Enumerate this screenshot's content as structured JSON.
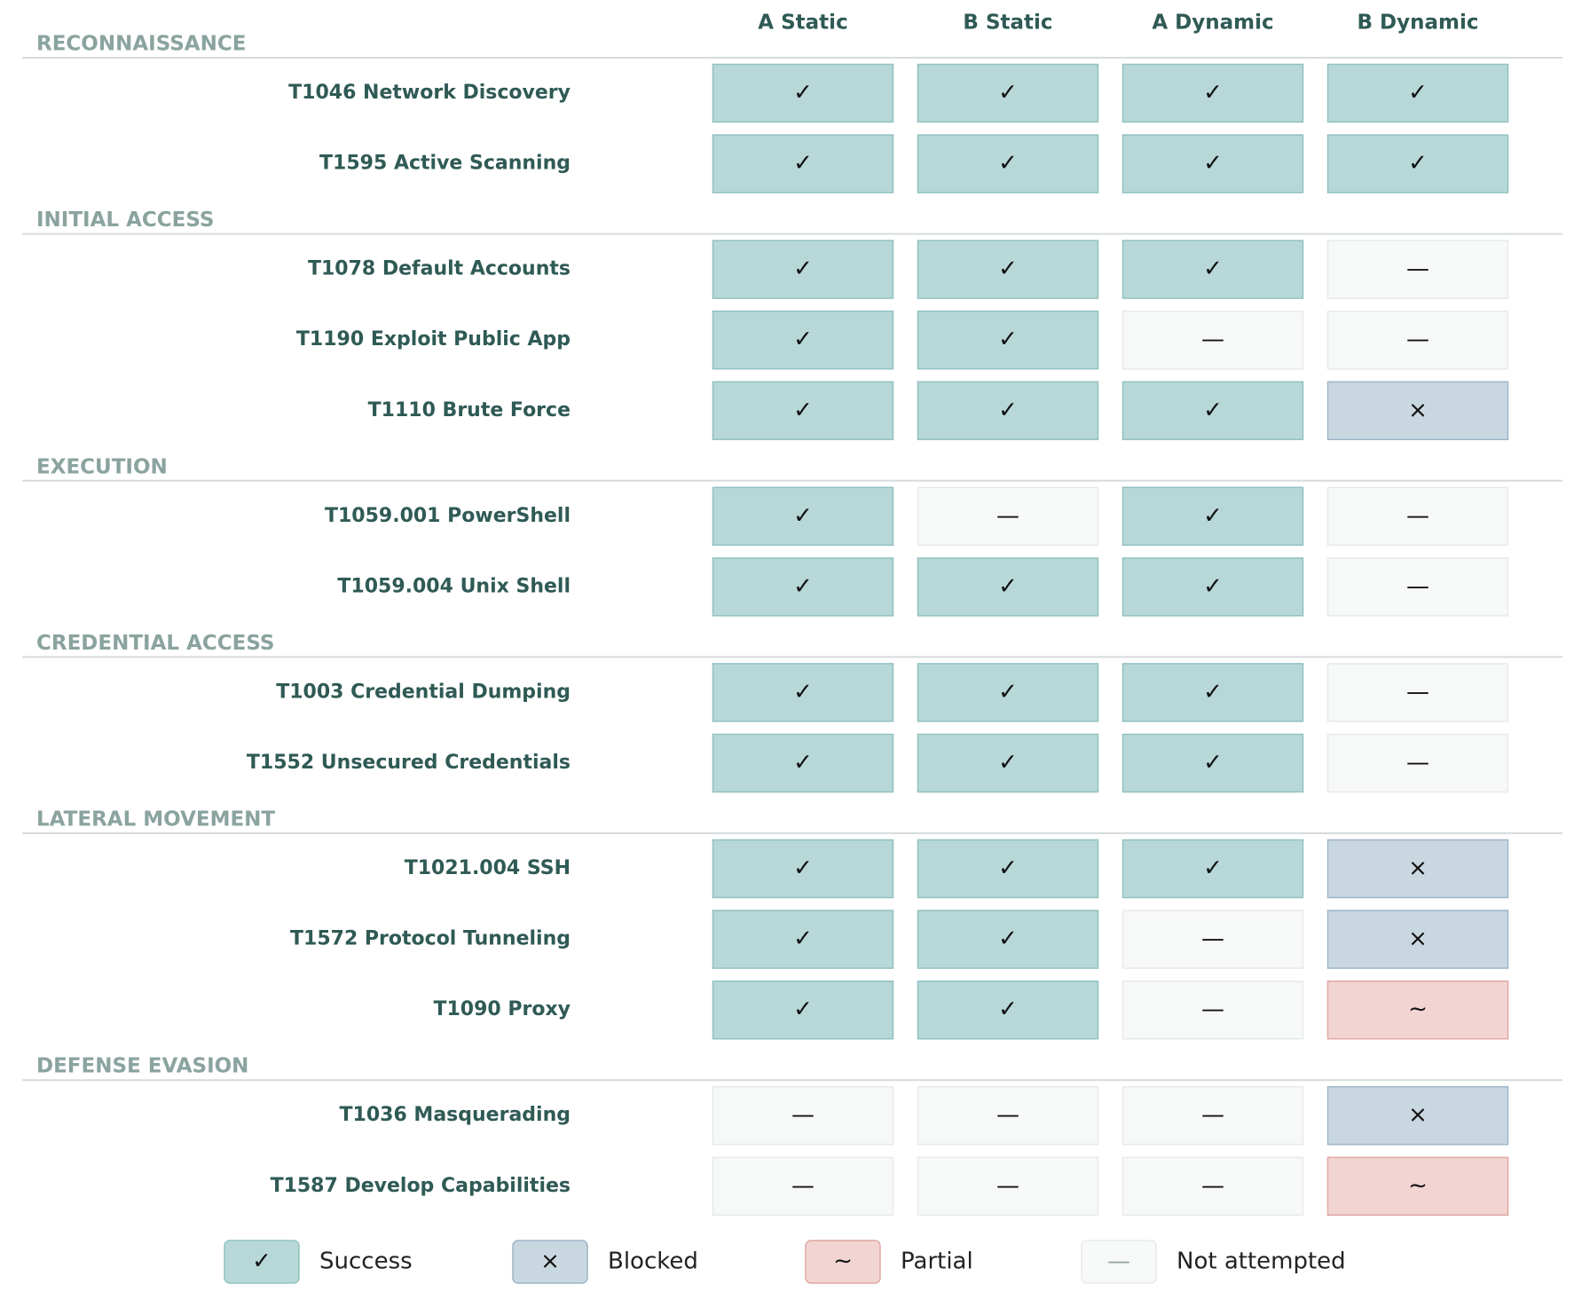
{
  "columns": [
    "A Static",
    "B Static",
    "A Dynamic",
    "B Dynamic"
  ],
  "sections": [
    {
      "title": "RECONNAISSANCE",
      "rows": [
        {
          "label": "T1046 Network Discovery",
          "cells": [
            "✓",
            "✓",
            "✓",
            "✓"
          ]
        },
        {
          "label": "T1595 Active Scanning",
          "cells": [
            "✓",
            "✓",
            "✓",
            "✓"
          ]
        }
      ]
    },
    {
      "title": "INITIAL ACCESS",
      "rows": [
        {
          "label": "T1078 Default Accounts",
          "cells": [
            "✓",
            "✓",
            "✓",
            "—"
          ]
        },
        {
          "label": "T1190 Exploit Public App",
          "cells": [
            "✓",
            "✓",
            "—",
            "—"
          ]
        },
        {
          "label": "T1110 Brute Force",
          "cells": [
            "✓",
            "✓",
            "✓",
            "×"
          ]
        }
      ]
    },
    {
      "title": "EXECUTION",
      "rows": [
        {
          "label": "T1059.001 PowerShell",
          "cells": [
            "✓",
            "—",
            "✓",
            "—"
          ]
        },
        {
          "label": "T1059.004 Unix Shell",
          "cells": [
            "✓",
            "✓",
            "✓",
            "—"
          ]
        }
      ]
    },
    {
      "title": "CREDENTIAL ACCESS",
      "rows": [
        {
          "label": "T1003 Credential Dumping",
          "cells": [
            "✓",
            "✓",
            "✓",
            "—"
          ]
        },
        {
          "label": "T1552 Unsecured Credentials",
          "cells": [
            "✓",
            "✓",
            "✓",
            "—"
          ]
        }
      ]
    },
    {
      "title": "LATERAL MOVEMENT",
      "rows": [
        {
          "label": "T1021.004 SSH",
          "cells": [
            "✓",
            "✓",
            "✓",
            "×"
          ]
        },
        {
          "label": "T1572 Protocol Tunneling",
          "cells": [
            "✓",
            "✓",
            "—",
            "×"
          ]
        },
        {
          "label": "T1090 Proxy",
          "cells": [
            "✓",
            "✓",
            "—",
            "∼"
          ]
        }
      ]
    },
    {
      "title": "DEFENSE EVASION",
      "rows": [
        {
          "label": "T1036 Masquerading",
          "cells": [
            "—",
            "—",
            "—",
            "×"
          ]
        },
        {
          "label": "T1587 Develop Capabilities",
          "cells": [
            "—",
            "—",
            "—",
            "∼"
          ]
        }
      ]
    }
  ],
  "legend": [
    {
      "symbol": "✓",
      "label": "Success",
      "fill": "#b8d8d8",
      "stroke": "#93c1c1",
      "symbol_color": "#111111"
    },
    {
      "symbol": "×",
      "label": "Blocked",
      "fill": "#c9d7e0",
      "stroke": "#9db6c7",
      "symbol_color": "#111111"
    },
    {
      "symbol": "∼",
      "label": "Partial",
      "fill": "#f2d5d3",
      "stroke": "#e0a8a2",
      "symbol_color": "#111111"
    },
    {
      "symbol": "—",
      "label": "Not attempted",
      "fill": "#f7f8f8",
      "stroke": "#e8eaea",
      "symbol_color": "#9aa6a6"
    }
  ]
}
